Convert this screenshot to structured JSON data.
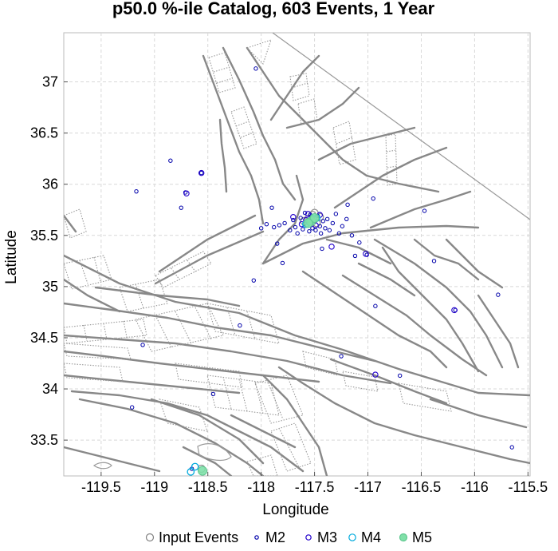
{
  "chart_data": {
    "type": "scatter",
    "title": "p50.0 %-ile Catalog, 603 Events, 1 Year",
    "xlabel": "Longitude",
    "ylabel": "Latitude",
    "xlim": [
      -119.85,
      -115.48
    ],
    "ylim": [
      33.15,
      37.48
    ],
    "xticks": [
      "-119.5",
      "-119",
      "-118.5",
      "-118",
      "-117.5",
      "-117",
      "-116.5",
      "-116",
      "-115.5"
    ],
    "yticks": [
      "33.5",
      "34",
      "34.5",
      "35",
      "35.5",
      "36",
      "36.5",
      "37"
    ],
    "grid": true,
    "legend_position": "bottom",
    "legend": [
      {
        "label": "Input Events",
        "color": "#808080",
        "style": "open"
      },
      {
        "label": "M2",
        "color": "#0000aa",
        "style": "open"
      },
      {
        "label": "M3",
        "color": "#2200cc",
        "style": "open"
      },
      {
        "label": "M4",
        "color": "#00aadd",
        "style": "open"
      },
      {
        "label": "M5",
        "color": "#80e0a8",
        "style": "filled"
      }
    ],
    "series": [
      {
        "name": "Input Events",
        "points": [
          [
            -117.52,
            35.7
          ],
          [
            -117.56,
            35.66
          ],
          [
            -117.48,
            35.62
          ],
          [
            -117.6,
            35.64
          ],
          [
            -117.45,
            35.68
          ],
          [
            -118.56,
            33.22
          ],
          [
            -117.5,
            35.72
          ]
        ]
      },
      {
        "name": "M2",
        "points": [
          [
            -118.05,
            37.13
          ],
          [
            -118.85,
            36.23
          ],
          [
            -119.17,
            35.93
          ],
          [
            -118.71,
            35.92
          ],
          [
            -118.56,
            36.11
          ],
          [
            -118.75,
            35.77
          ],
          [
            -117.9,
            35.77
          ],
          [
            -116.95,
            35.86
          ],
          [
            -116.47,
            35.74
          ],
          [
            -117.19,
            35.8
          ],
          [
            -117.95,
            35.61
          ],
          [
            -117.88,
            35.58
          ],
          [
            -117.83,
            35.6
          ],
          [
            -117.78,
            35.62
          ],
          [
            -117.73,
            35.55
          ],
          [
            -117.7,
            35.65
          ],
          [
            -117.68,
            35.58
          ],
          [
            -117.66,
            35.52
          ],
          [
            -117.63,
            35.67
          ],
          [
            -117.61,
            35.56
          ],
          [
            -117.59,
            35.72
          ],
          [
            -117.57,
            35.6
          ],
          [
            -117.55,
            35.54
          ],
          [
            -117.54,
            35.7
          ],
          [
            -117.52,
            35.57
          ],
          [
            -117.5,
            35.63
          ],
          [
            -117.49,
            35.55
          ],
          [
            -117.47,
            35.69
          ],
          [
            -117.45,
            35.59
          ],
          [
            -117.44,
            35.52
          ],
          [
            -117.42,
            35.64
          ],
          [
            -117.4,
            35.57
          ],
          [
            -117.38,
            35.66
          ],
          [
            -117.36,
            35.55
          ],
          [
            -117.33,
            35.62
          ],
          [
            -117.3,
            35.71
          ],
          [
            -117.27,
            35.52
          ],
          [
            -117.24,
            35.59
          ],
          [
            -117.2,
            35.66
          ],
          [
            -117.15,
            35.5
          ],
          [
            -117.85,
            35.42
          ],
          [
            -117.8,
            35.23
          ],
          [
            -117.43,
            35.37
          ],
          [
            -117.12,
            35.3
          ],
          [
            -117.01,
            35.31
          ],
          [
            -117.08,
            35.43
          ],
          [
            -118.0,
            35.57
          ],
          [
            -118.07,
            35.06
          ],
          [
            -116.93,
            34.81
          ],
          [
            -116.38,
            35.25
          ],
          [
            -116.18,
            34.77
          ],
          [
            -115.78,
            34.92
          ],
          [
            -116.7,
            34.13
          ],
          [
            -117.25,
            34.32
          ],
          [
            -119.21,
            33.82
          ],
          [
            -118.65,
            33.22
          ],
          [
            -115.65,
            33.43
          ],
          [
            -118.2,
            34.62
          ],
          [
            -119.11,
            34.43
          ],
          [
            -118.45,
            33.95
          ]
        ]
      },
      {
        "name": "M3",
        "points": [
          [
            -117.58,
            35.65
          ],
          [
            -117.53,
            35.68
          ],
          [
            -117.49,
            35.6
          ],
          [
            -117.45,
            35.7
          ],
          [
            -117.62,
            35.61
          ],
          [
            -117.56,
            35.71
          ],
          [
            -117.02,
            35.32
          ],
          [
            -116.19,
            34.77
          ],
          [
            -118.7,
            35.91
          ],
          [
            -117.34,
            35.39
          ],
          [
            -118.56,
            36.11
          ],
          [
            -117.7,
            35.68
          ],
          [
            -116.93,
            34.14
          ]
        ]
      },
      {
        "name": "M4",
        "points": [
          [
            -117.55,
            35.63
          ],
          [
            -117.51,
            35.66
          ],
          [
            -117.58,
            35.61
          ],
          [
            -117.48,
            35.67
          ],
          [
            -118.62,
            33.24
          ],
          [
            -118.66,
            33.19
          ]
        ]
      },
      {
        "name": "M5",
        "points": [
          [
            -117.53,
            35.64
          ],
          [
            -117.5,
            35.67
          ],
          [
            -117.56,
            35.62
          ],
          [
            -118.55,
            33.2
          ]
        ]
      }
    ]
  }
}
